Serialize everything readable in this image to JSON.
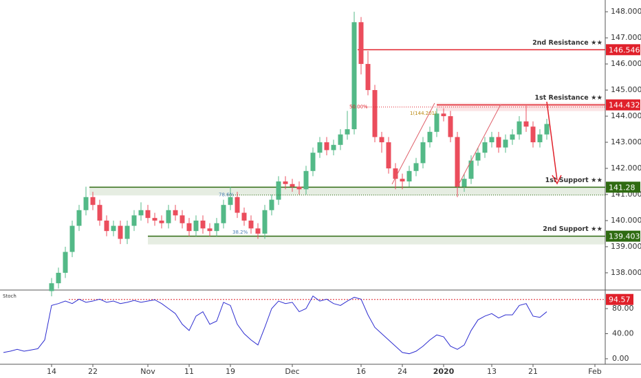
{
  "chart_data": {
    "type": "candlestick",
    "up_color": "#53b987",
    "down_color": "#eb4d5c",
    "open": [
      null,
      null,
      null,
      null,
      null,
      null,
      null,
      137.3,
      137.6,
      138.0,
      138.8,
      139.8,
      140.4,
      140.9,
      140.6,
      140.0,
      139.6,
      139.8,
      139.3,
      139.8,
      140.2,
      140.4,
      140.1,
      140.0,
      139.9,
      140.4,
      140.2,
      139.9,
      139.6,
      140.0,
      139.7,
      139.6,
      139.9,
      140.6,
      140.9,
      140.3,
      140.0,
      139.7,
      139.5,
      140.4,
      140.8,
      141.5,
      141.4,
      141.3,
      141.2,
      141.9,
      142.6,
      143.0,
      142.7,
      142.9,
      143.3,
      143.5,
      147.6,
      146.0,
      145.0,
      143.2,
      143.0,
      142.0,
      141.6,
      141.5,
      141.9,
      142.2,
      143.0,
      143.4,
      144.1,
      144.0,
      143.2,
      141.3,
      141.6,
      142.3,
      142.6,
      143.0,
      143.2,
      142.8,
      143.1,
      143.3,
      143.8,
      143.6,
      143.0,
      143.3
    ],
    "high": [
      null,
      null,
      null,
      null,
      null,
      null,
      null,
      137.8,
      138.2,
      139.0,
      140.0,
      140.6,
      141.3,
      141.1,
      140.8,
      140.2,
      140.0,
      140.0,
      140.0,
      140.4,
      140.7,
      140.6,
      140.3,
      140.2,
      140.6,
      140.6,
      140.4,
      140.1,
      140.2,
      140.2,
      139.9,
      140.1,
      140.8,
      141.3,
      141.1,
      140.5,
      140.2,
      139.9,
      140.6,
      141.0,
      141.7,
      141.7,
      141.6,
      141.5,
      142.1,
      142.8,
      143.2,
      143.2,
      143.1,
      143.5,
      144.2,
      148.0,
      147.8,
      146.5,
      145.2,
      143.4,
      143.2,
      142.2,
      141.8,
      142.1,
      142.4,
      143.2,
      143.6,
      144.3,
      144.3,
      144.2,
      143.4,
      141.8,
      142.5,
      142.8,
      143.2,
      143.4,
      143.4,
      143.3,
      143.5,
      144.0,
      144.4,
      143.8,
      143.5,
      143.9
    ],
    "low": [
      null,
      null,
      null,
      null,
      null,
      null,
      null,
      137.1,
      137.4,
      137.8,
      138.6,
      139.6,
      140.2,
      140.4,
      139.8,
      139.4,
      139.4,
      139.1,
      139.1,
      139.6,
      140.0,
      139.9,
      139.8,
      139.7,
      139.7,
      140.0,
      139.7,
      139.4,
      139.4,
      139.5,
      139.4,
      139.4,
      139.7,
      140.4,
      140.1,
      139.8,
      139.5,
      139.3,
      139.3,
      140.2,
      140.6,
      141.2,
      141.1,
      141.0,
      141.0,
      141.7,
      142.4,
      142.5,
      142.5,
      142.7,
      143.1,
      143.3,
      145.6,
      144.8,
      143.0,
      142.6,
      141.8,
      141.2,
      141.2,
      141.3,
      141.7,
      142.0,
      142.8,
      143.2,
      143.8,
      143.0,
      140.9,
      141.1,
      141.4,
      142.1,
      142.4,
      142.8,
      142.6,
      142.6,
      142.9,
      143.1,
      143.4,
      142.8,
      142.8,
      143.1
    ],
    "close": [
      null,
      null,
      null,
      null,
      null,
      null,
      null,
      137.6,
      138.0,
      138.8,
      139.8,
      140.4,
      140.9,
      140.6,
      140.0,
      139.6,
      139.8,
      139.3,
      139.8,
      140.2,
      140.4,
      140.1,
      140.0,
      139.9,
      140.4,
      140.2,
      139.9,
      139.6,
      140.0,
      139.7,
      139.6,
      139.9,
      140.6,
      140.9,
      140.3,
      140.0,
      139.7,
      139.5,
      140.4,
      140.8,
      141.5,
      141.4,
      141.3,
      141.2,
      141.9,
      142.6,
      143.0,
      142.7,
      142.9,
      143.3,
      143.5,
      147.6,
      146.0,
      145.0,
      143.2,
      143.0,
      142.0,
      141.6,
      141.5,
      141.9,
      142.2,
      143.0,
      143.4,
      144.1,
      144.0,
      143.2,
      141.3,
      141.6,
      142.3,
      142.6,
      143.0,
      143.2,
      142.8,
      143.1,
      143.3,
      143.8,
      143.6,
      143.0,
      143.3,
      143.7
    ],
    "ylim": [
      137.34,
      148.45
    ],
    "yticks": [
      {
        "value": 138,
        "label": "138.000"
      },
      {
        "value": 139,
        "label": "139.000"
      },
      {
        "value": 140,
        "label": "140.000"
      },
      {
        "value": 141,
        "label": "141.000"
      },
      {
        "value": 142,
        "label": "142.000"
      },
      {
        "value": 143,
        "label": "143.000"
      },
      {
        "value": 144,
        "label": "144.000"
      },
      {
        "value": 145,
        "label": "145.000"
      },
      {
        "value": 146,
        "label": "146.000"
      },
      {
        "value": 147,
        "label": "147.000"
      },
      {
        "value": 148,
        "label": "148.000"
      }
    ],
    "xticks": [
      {
        "value": 7,
        "label": "14"
      },
      {
        "value": 13,
        "label": "22"
      },
      {
        "value": 21,
        "label": "Nov"
      },
      {
        "value": 27,
        "label": "11"
      },
      {
        "value": 33,
        "label": "19"
      },
      {
        "value": 42,
        "label": "Dec"
      },
      {
        "value": 52,
        "label": "16"
      },
      {
        "value": 58,
        "label": "24"
      },
      {
        "value": 64,
        "label": "2020"
      },
      {
        "value": 71,
        "label": "13"
      },
      {
        "value": 77,
        "label": "21"
      },
      {
        "value": 86,
        "label": "Feb"
      }
    ],
    "levels": [
      {
        "name": "2nd Resistance ★★",
        "value": 146.546,
        "color": "#e0202a"
      },
      {
        "name": "1st Resistance ★★",
        "value": 144.432,
        "color": "#e0202a"
      },
      {
        "name": "1st Support ★★",
        "value": 141.28,
        "color": "#2f6b12"
      },
      {
        "name": "2nd Support ★★",
        "value": 139.403,
        "color": "#2f6b12"
      }
    ],
    "annotations": [
      "50.00%",
      "1(144.201)",
      "78.6%",
      "38.2%"
    ],
    "stoch": {
      "name": "Stoch",
      "color": "#2c2cd0",
      "values": [
        10,
        12,
        15,
        12,
        14,
        16,
        30,
        85,
        88,
        92,
        88,
        95,
        90,
        92,
        95,
        90,
        92,
        88,
        90,
        93,
        90,
        92,
        94,
        88,
        80,
        72,
        55,
        45,
        68,
        75,
        55,
        60,
        90,
        85,
        55,
        40,
        30,
        22,
        50,
        80,
        92,
        88,
        90,
        75,
        80,
        100,
        92,
        95,
        88,
        85,
        92,
        98,
        95,
        70,
        50,
        40,
        30,
        20,
        10,
        8,
        12,
        20,
        30,
        38,
        35,
        20,
        15,
        22,
        45,
        62,
        68,
        72,
        65,
        70,
        70,
        85,
        88,
        68,
        66,
        75
      ],
      "level": 94.57,
      "ylim": [
        -8.8,
        109.6
      ],
      "yticks": [
        {
          "value": 0,
          "label": "0.00"
        },
        {
          "value": 40,
          "label": "40.00"
        },
        {
          "value": 80,
          "label": "80.00"
        }
      ]
    }
  }
}
